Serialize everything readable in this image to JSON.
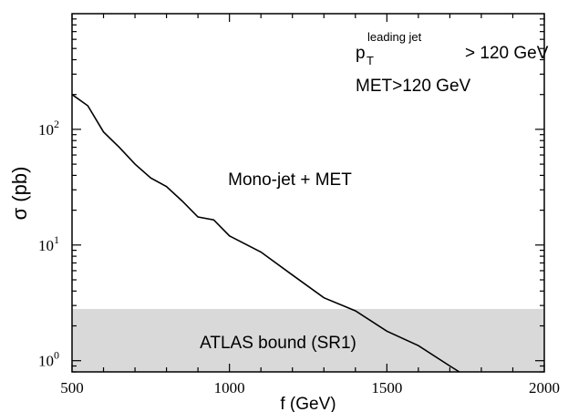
{
  "chart_data": {
    "type": "line",
    "x_scale": "linear",
    "y_scale": "log",
    "xlim": [
      500,
      2000
    ],
    "ylim": [
      0.8,
      1000
    ],
    "xlabel": "f (GeV)",
    "ylabel": "σ (pb)",
    "x_ticks": [
      500,
      1000,
      1500,
      2000
    ],
    "y_ticks": [
      {
        "value": 1,
        "base": "10",
        "exp": "0"
      },
      {
        "value": 10,
        "base": "10",
        "exp": "1"
      },
      {
        "value": 100,
        "base": "10",
        "exp": "2"
      }
    ],
    "grid": false,
    "series": [
      {
        "name": "Mono-jet + MET",
        "color": "#000000",
        "x": [
          500,
          550,
          600,
          650,
          700,
          750,
          800,
          850,
          900,
          950,
          1000,
          1100,
          1200,
          1300,
          1400,
          1500,
          1600,
          1700,
          1730
        ],
        "y": [
          200,
          160,
          95,
          70,
          50,
          38,
          32,
          24,
          17.5,
          16.5,
          12,
          8.7,
          5.5,
          3.5,
          2.7,
          1.8,
          1.35,
          0.9,
          0.78
        ]
      }
    ],
    "bands": [
      {
        "label": "ATLAS bound (SR1)",
        "y_min": 0.8,
        "y_max": 2.8,
        "color": "#d9d9d9"
      }
    ],
    "annotations": {
      "curve_label": "Mono-jet + MET",
      "cut1_p": "p",
      "cut1_sub": "T",
      "cut1_sup": "leading jet",
      "cut1_tail": "> 120 GeV",
      "cut2": "MET>120 GeV"
    }
  }
}
